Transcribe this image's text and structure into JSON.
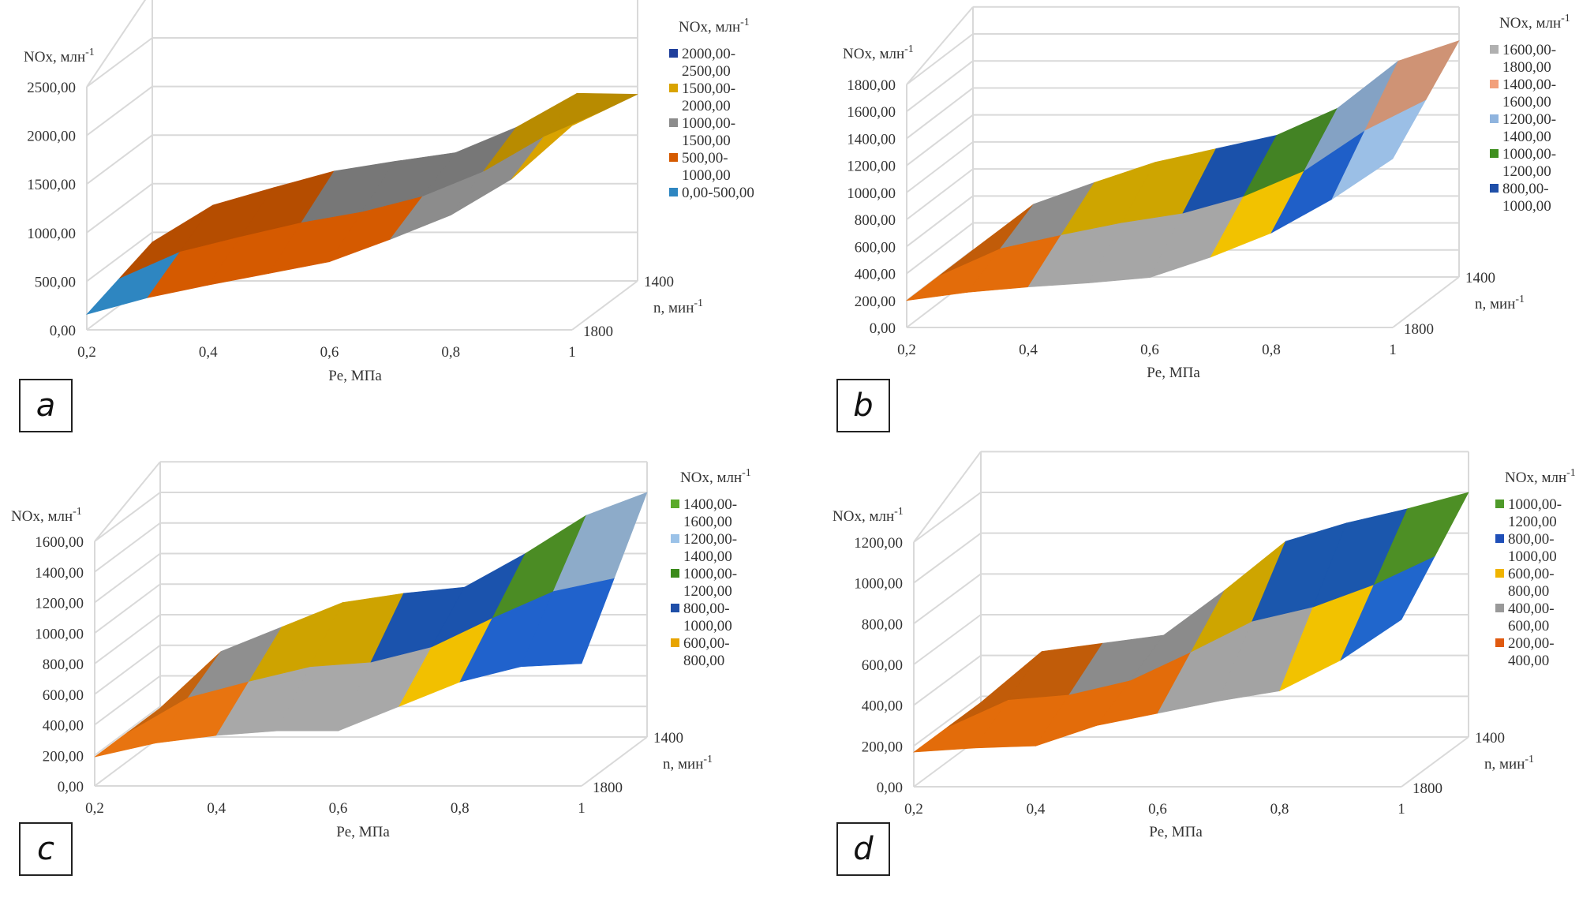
{
  "figure": {
    "panel_labels": [
      "a",
      "b",
      "c",
      "d"
    ]
  },
  "chart_data": [
    {
      "panel": "a",
      "type": "surface",
      "title": "",
      "ylabel": "NOx, млн-1",
      "xlabel": "Pe, МПа",
      "zlabel": "n, мин-1",
      "ylim": [
        0,
        2500
      ],
      "y_ticks": [
        "0,00",
        "500,00",
        "1000,00",
        "1500,00",
        "2000,00",
        "2500,00"
      ],
      "x": [
        0.2,
        0.3,
        0.4,
        0.5,
        0.6,
        0.7,
        0.8,
        0.9,
        1.0
      ],
      "x_tick_labels": [
        "0,2",
        "0,4",
        "0,6",
        "0,8",
        "1"
      ],
      "z_tick_labels": [
        "1400",
        "1800"
      ],
      "series": [
        {
          "name": "1800",
          "values": [
            160,
            330,
            460,
            580,
            700,
            930,
            1180,
            1550,
            2100
          ]
        },
        {
          "name": "1400",
          "values": [
            400,
            780,
            960,
            1130,
            1230,
            1320,
            1580,
            1930,
            1920
          ]
        }
      ],
      "legend_title": "NOx, млн-1",
      "legend_position": "right",
      "legend": [
        {
          "label": "2000,00-2500,00",
          "color": "#1f3f9c"
        },
        {
          "label": "1500,00-2000,00",
          "color": "#d9a300"
        },
        {
          "label": "1000,00-1500,00",
          "color": "#8c8c8c"
        },
        {
          "label": "500,00-1000,00",
          "color": "#d55a00"
        },
        {
          "label": "0,00-500,00",
          "color": "#2e86c1"
        }
      ],
      "bands": [
        {
          "min": 0,
          "max": 500,
          "color": "#2e86c1"
        },
        {
          "min": 500,
          "max": 1000,
          "color": "#d55a00"
        },
        {
          "min": 1000,
          "max": 1500,
          "color": "#8c8c8c"
        },
        {
          "min": 1500,
          "max": 2000,
          "color": "#d9a300"
        },
        {
          "min": 2000,
          "max": 2500,
          "color": "#1f3f9c"
        }
      ]
    },
    {
      "panel": "b",
      "type": "surface",
      "title": "",
      "ylabel": "NOx, млн-1",
      "xlabel": "Pe, МПа",
      "zlabel": "n, мин-1",
      "ylim": [
        0,
        1800
      ],
      "y_ticks": [
        "0,00",
        "200,00",
        "400,00",
        "600,00",
        "800,00",
        "1000,00",
        "1200,00",
        "1400,00",
        "1600,00",
        "1800,00"
      ],
      "x": [
        0.2,
        0.3,
        0.4,
        0.5,
        0.6,
        0.7,
        0.8,
        0.9,
        1.0
      ],
      "x_tick_labels": [
        "0,2",
        "0,4",
        "0,6",
        "0,8",
        "1"
      ],
      "z_tick_labels": [
        "1400",
        "1800"
      ],
      "series": [
        {
          "name": "1800",
          "values": [
            200,
            260,
            300,
            330,
            370,
            520,
            700,
            950,
            1250
          ]
        },
        {
          "name": "1400",
          "values": [
            200,
            540,
            700,
            850,
            950,
            1050,
            1250,
            1600,
            1750
          ]
        }
      ],
      "legend_title": "NOx, млн-1",
      "legend_position": "right",
      "legend": [
        {
          "label": "1600,00-1800,00",
          "color": "#b0b0b0"
        },
        {
          "label": "1400,00-1600,00",
          "color": "#f2a07b"
        },
        {
          "label": "1200,00-1400,00",
          "color": "#8fb4de"
        },
        {
          "label": "1000,00-1200,00",
          "color": "#3f8f1f"
        },
        {
          "label": "800,00-1000,00",
          "color": "#1f4fa8"
        }
      ],
      "bands": [
        {
          "min": 0,
          "max": 200,
          "color": "#2e86c1"
        },
        {
          "min": 200,
          "max": 400,
          "color": "#e36c0a"
        },
        {
          "min": 400,
          "max": 600,
          "color": "#a6a6a6"
        },
        {
          "min": 600,
          "max": 800,
          "color": "#f2c200"
        },
        {
          "min": 800,
          "max": 1000,
          "color": "#1f5fc8"
        },
        {
          "min": 1000,
          "max": 1200,
          "color": "#4f9a2a"
        },
        {
          "min": 1200,
          "max": 1400,
          "color": "#9bbfe6"
        },
        {
          "min": 1400,
          "max": 1600,
          "color": "#f4ad8a"
        },
        {
          "min": 1600,
          "max": 1800,
          "color": "#c8c8c8"
        }
      ]
    },
    {
      "panel": "c",
      "type": "surface",
      "title": "",
      "ylabel": "NOx, млн-1",
      "xlabel": "Pe, МПа",
      "zlabel": "n, мин-1",
      "ylim": [
        0,
        1600
      ],
      "y_ticks": [
        "0,00",
        "200,00",
        "400,00",
        "600,00",
        "800,00",
        "1000,00",
        "1200,00",
        "1400,00",
        "1600,00"
      ],
      "x": [
        0.2,
        0.3,
        0.4,
        0.5,
        0.6,
        0.7,
        0.8,
        0.9,
        1.0
      ],
      "x_tick_labels": [
        "0,2",
        "0,4",
        "0,6",
        "0,8",
        "1"
      ],
      "z_tick_labels": [
        "1400",
        "1800"
      ],
      "series": [
        {
          "name": "1800",
          "values": [
            190,
            280,
            330,
            360,
            360,
            520,
            680,
            780,
            800
          ]
        },
        {
          "name": "1400",
          "values": [
            190,
            560,
            720,
            880,
            940,
            980,
            1200,
            1450,
            1600
          ]
        }
      ],
      "legend_title": "NOx, млн-1",
      "legend_position": "right",
      "legend": [
        {
          "label": "1400,00-1600,00",
          "color": "#5aaa2a"
        },
        {
          "label": "1200,00-1400,00",
          "color": "#9bc2e8"
        },
        {
          "label": "1000,00-1200,00",
          "color": "#3a8a1a"
        },
        {
          "label": "800,00-1000,00",
          "color": "#1f4fa8"
        },
        {
          "label": "600,00-800,00",
          "color": "#e8a400"
        }
      ],
      "bands": [
        {
          "min": 0,
          "max": 200,
          "color": "#2e86c1"
        },
        {
          "min": 200,
          "max": 400,
          "color": "#e87410"
        },
        {
          "min": 400,
          "max": 600,
          "color": "#a8a8a8"
        },
        {
          "min": 600,
          "max": 800,
          "color": "#f2c000"
        },
        {
          "min": 800,
          "max": 1000,
          "color": "#2062cc"
        },
        {
          "min": 1000,
          "max": 1200,
          "color": "#58a52a"
        },
        {
          "min": 1200,
          "max": 1400,
          "color": "#a6c9ec"
        },
        {
          "min": 1400,
          "max": 1600,
          "color": "#62b030"
        }
      ]
    },
    {
      "panel": "d",
      "type": "surface",
      "title": "",
      "ylabel": "NOx, млн-1",
      "xlabel": "Pe, МПа",
      "zlabel": "n, мин-1",
      "ylim": [
        0,
        1200
      ],
      "y_ticks": [
        "0,00",
        "200,00",
        "400,00",
        "600,00",
        "800,00",
        "1000,00",
        "1200,00"
      ],
      "x": [
        0.2,
        0.3,
        0.4,
        0.5,
        0.6,
        0.7,
        0.8,
        0.9,
        1.0
      ],
      "x_tick_labels": [
        "0,2",
        "0,4",
        "0,6",
        "0,8",
        "1"
      ],
      "z_tick_labels": [
        "1400",
        "1800"
      ],
      "series": [
        {
          "name": "1800",
          "values": [
            170,
            190,
            200,
            300,
            360,
            420,
            470,
            620,
            820
          ]
        },
        {
          "name": "1400",
          "values": [
            170,
            420,
            460,
            500,
            720,
            960,
            1050,
            1120,
            1200
          ]
        }
      ],
      "legend_title": "NOx, млн-1",
      "legend_position": "right",
      "legend": [
        {
          "label": "1000,00-1200,00",
          "color": "#4f9a2a"
        },
        {
          "label": "800,00-1000,00",
          "color": "#1f4fb8"
        },
        {
          "label": "600,00-800,00",
          "color": "#f0b400"
        },
        {
          "label": "400,00-600,00",
          "color": "#999999"
        },
        {
          "label": "200,00-400,00",
          "color": "#e05a10"
        }
      ],
      "bands": [
        {
          "min": 0,
          "max": 200,
          "color": "#3a8fd0"
        },
        {
          "min": 200,
          "max": 400,
          "color": "#e36c0a"
        },
        {
          "min": 400,
          "max": 600,
          "color": "#a3a3a3"
        },
        {
          "min": 600,
          "max": 800,
          "color": "#f2c200"
        },
        {
          "min": 800,
          "max": 1000,
          "color": "#2066cc"
        },
        {
          "min": 1000,
          "max": 1200,
          "color": "#5aa82c"
        }
      ]
    }
  ]
}
